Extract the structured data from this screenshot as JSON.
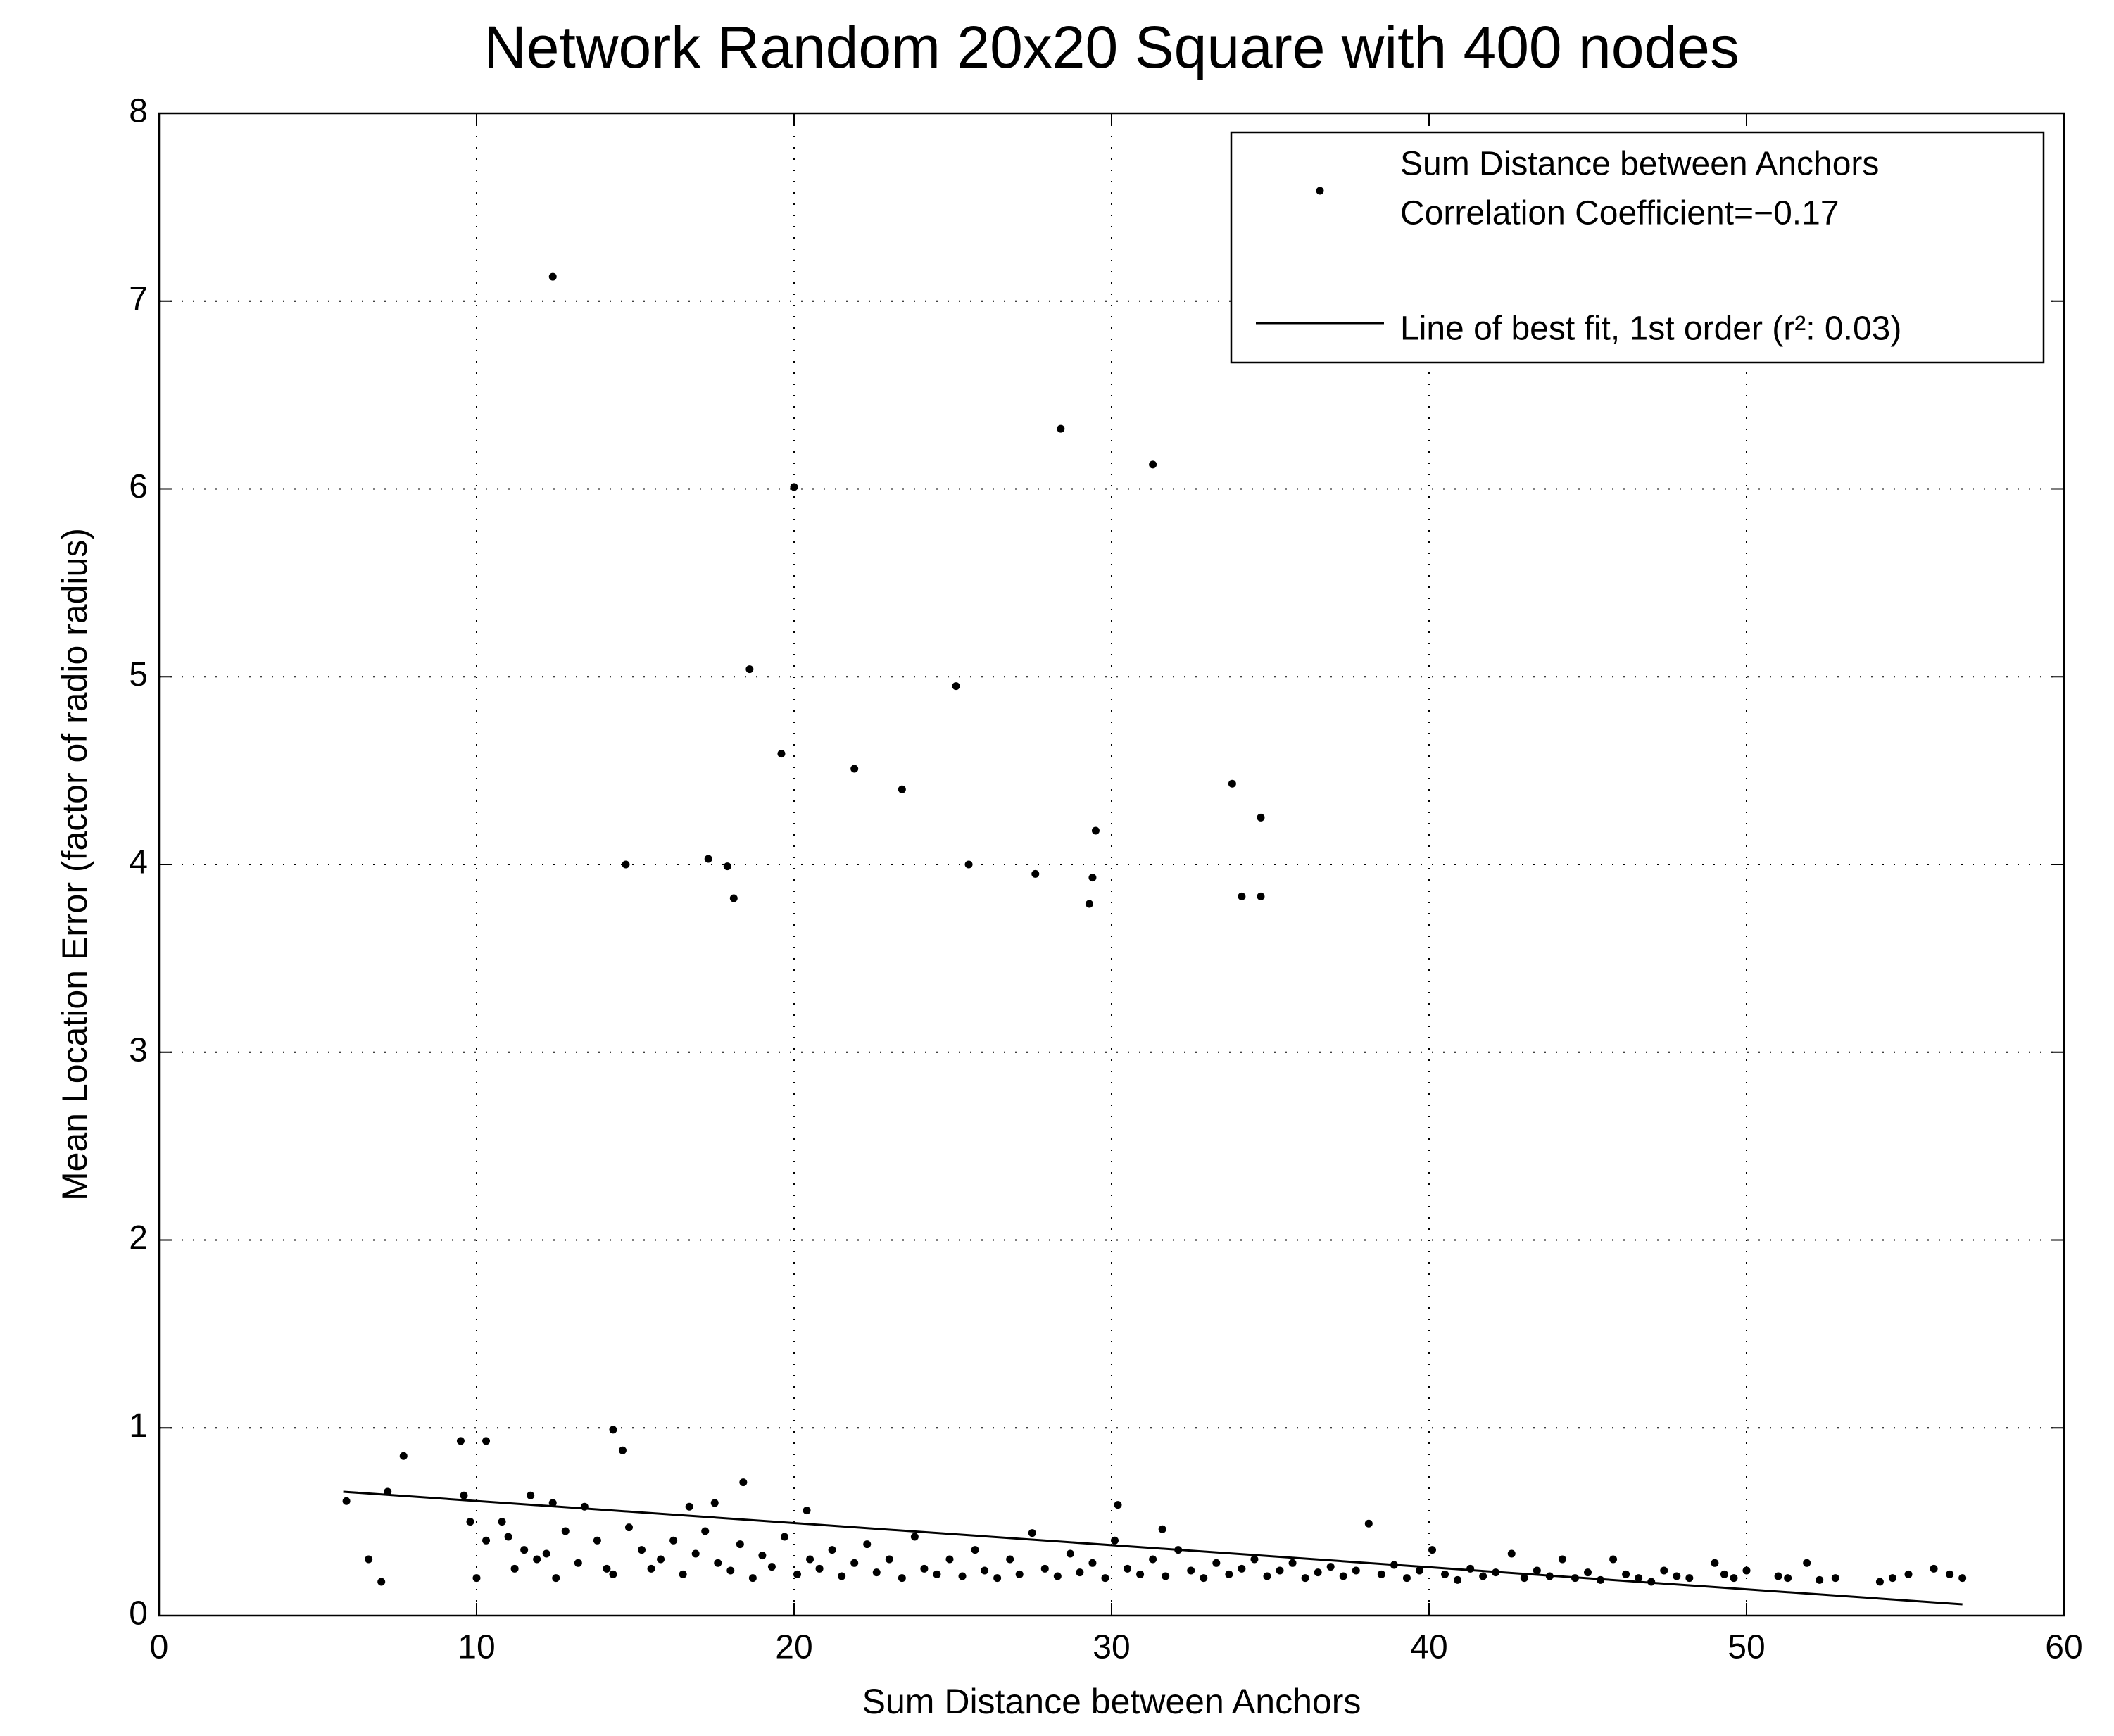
{
  "chart_data": {
    "type": "scatter",
    "title": "Network Random 20x20 Square with 400 nodes",
    "x_label": "Sum Distance between Anchors",
    "y_label": "Mean Location Error (factor of radio radius)",
    "xlim": [
      0,
      60
    ],
    "xticks": [
      0,
      10,
      20,
      30,
      40,
      50,
      60
    ],
    "ylim": [
      0,
      8
    ],
    "yticks": [
      0,
      1,
      2,
      3,
      4,
      5,
      6,
      7,
      8
    ],
    "grid": true,
    "legend": "upper right",
    "series": [
      {
        "name": "Sum Distance between Anchors",
        "annotation": "Correlation Coefficient=−0.17",
        "mode": "markers",
        "color": "#000000",
        "x": [
          12.4,
          28.4,
          31.3,
          20,
          18.6,
          25.1,
          19.6,
          21.9,
          23.4,
          33.8,
          34.7,
          29.5,
          14.7,
          17.3,
          17.9,
          25.5,
          27.6,
          29.4,
          18.1,
          29.3,
          34.1,
          34.7,
          9.5,
          10.3,
          14.3,
          14.6,
          7.7,
          18.4,
          5.9,
          6.6,
          7,
          7.2,
          9.6,
          9.8,
          10,
          11.7,
          12.4,
          13.4,
          16.7,
          17.5,
          20.4,
          30.2,
          38.1,
          31.6,
          10.3,
          10.8,
          11,
          11.2,
          11.5,
          11.9,
          12.2,
          12.5,
          12.8,
          13.2,
          13.8,
          14.1,
          14.3,
          14.8,
          15.2,
          15.5,
          15.8,
          16.2,
          16.5,
          16.9,
          17.2,
          17.6,
          18,
          18.3,
          18.7,
          19,
          19.3,
          19.7,
          20.1,
          20.5,
          20.8,
          21.2,
          21.5,
          21.9,
          22.3,
          22.6,
          23,
          23.4,
          23.8,
          24.1,
          24.5,
          24.9,
          25.3,
          25.7,
          26,
          26.4,
          26.8,
          27.1,
          27.5,
          27.9,
          28.3,
          28.7,
          29,
          29.4,
          29.8,
          30.1,
          30.5,
          30.9,
          31.3,
          31.7,
          32.1,
          32.5,
          32.9,
          33.3,
          33.7,
          34.1,
          34.5,
          34.9,
          35.3,
          35.7,
          36.1,
          36.5,
          36.9,
          37.3,
          37.7,
          38.5,
          38.9,
          39.3,
          39.7,
          40.1,
          40.5,
          40.9,
          41.3,
          41.7,
          42.1,
          42.6,
          43,
          43.4,
          43.8,
          44.2,
          44.6,
          45,
          45.4,
          45.8,
          46.2,
          46.6,
          47,
          47.4,
          47.8,
          48.2,
          49,
          49.3,
          49.6,
          50,
          51,
          51.3,
          51.9,
          52.3,
          52.8,
          54.2,
          54.6,
          55.1,
          55.9,
          56.4,
          56.8
        ],
        "values": [
          7.13,
          6.32,
          6.13,
          6.01,
          5.04,
          4.95,
          4.59,
          4.51,
          4.4,
          4.43,
          4.25,
          4.18,
          4.0,
          4.03,
          3.99,
          4.0,
          3.95,
          3.93,
          3.82,
          3.79,
          3.83,
          3.83,
          0.93,
          0.93,
          0.99,
          0.88,
          0.85,
          0.71,
          0.61,
          0.3,
          0.18,
          0.66,
          0.64,
          0.5,
          0.2,
          0.64,
          0.6,
          0.58,
          0.58,
          0.6,
          0.56,
          0.59,
          0.49,
          0.46,
          0.4,
          0.5,
          0.42,
          0.25,
          0.35,
          0.3,
          0.33,
          0.2,
          0.45,
          0.28,
          0.4,
          0.25,
          0.22,
          0.47,
          0.35,
          0.25,
          0.3,
          0.4,
          0.22,
          0.33,
          0.45,
          0.28,
          0.24,
          0.38,
          0.2,
          0.32,
          0.26,
          0.42,
          0.22,
          0.3,
          0.25,
          0.35,
          0.21,
          0.28,
          0.38,
          0.23,
          0.3,
          0.2,
          0.42,
          0.25,
          0.22,
          0.3,
          0.21,
          0.35,
          0.24,
          0.2,
          0.3,
          0.22,
          0.44,
          0.25,
          0.21,
          0.33,
          0.23,
          0.28,
          0.2,
          0.4,
          0.25,
          0.22,
          0.3,
          0.21,
          0.35,
          0.24,
          0.2,
          0.28,
          0.22,
          0.25,
          0.3,
          0.21,
          0.24,
          0.28,
          0.2,
          0.23,
          0.26,
          0.21,
          0.24,
          0.22,
          0.27,
          0.2,
          0.24,
          0.35,
          0.22,
          0.19,
          0.25,
          0.21,
          0.23,
          0.33,
          0.2,
          0.24,
          0.21,
          0.3,
          0.2,
          0.23,
          0.19,
          0.3,
          0.22,
          0.2,
          0.18,
          0.24,
          0.21,
          0.2,
          0.28,
          0.22,
          0.2,
          0.24,
          0.21,
          0.2,
          0.28,
          0.19,
          0.2,
          0.18,
          0.2,
          0.22,
          0.25,
          0.22,
          0.2
        ]
      },
      {
        "name": "Line of best fit, 1st order (r²: 0.03)",
        "mode": "line",
        "color": "#000000",
        "x": [
          5.8,
          56.8
        ],
        "values": [
          0.66,
          0.06
        ]
      }
    ]
  }
}
